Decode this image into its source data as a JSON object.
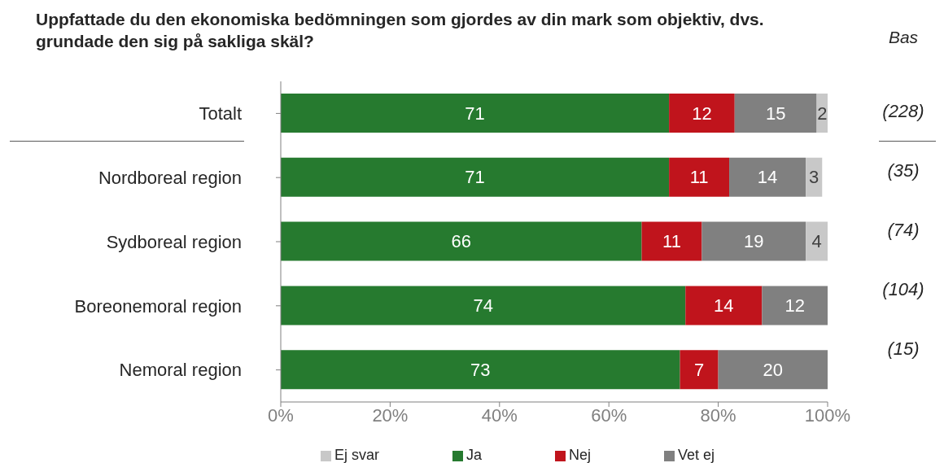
{
  "chart_data": {
    "type": "bar",
    "title": "Uppfattade du den ekonomiska bedömningen som gjordes av din mark som objektiv, dvs. grundade den sig på sakliga skäl?",
    "orientation": "horizontal",
    "stacked": true,
    "data_labels": true,
    "legend": "bottom",
    "grid": false,
    "categories": [
      "Totalt",
      "Nordboreal region",
      "Sydboreal region",
      "Boreonemoral region",
      "Nemoral region"
    ],
    "xlim": [
      0,
      100
    ],
    "xticks": [
      {
        "value": 0,
        "label": "0%"
      },
      {
        "value": 20,
        "label": "20%"
      },
      {
        "value": 40,
        "label": "40%"
      },
      {
        "value": 60,
        "label": "60%"
      },
      {
        "value": 80,
        "label": "80%"
      },
      {
        "value": 100,
        "label": "100%"
      }
    ],
    "series": [
      {
        "name": "Ja",
        "color": "#267a2f",
        "values": [
          71,
          71,
          66,
          74,
          73
        ]
      },
      {
        "name": "Nej",
        "color": "#c0141c",
        "values": [
          12,
          11,
          11,
          14,
          7
        ]
      },
      {
        "name": "Vet ej",
        "color": "#808080",
        "values": [
          15,
          14,
          19,
          12,
          20
        ]
      },
      {
        "name": "Ej svar",
        "color": "#c8c8c8",
        "values": [
          2,
          3,
          4,
          null,
          null
        ]
      }
    ],
    "annotations": [
      "Bas",
      "(228)",
      "(35)",
      "(74)",
      "(104)",
      "(15)"
    ]
  }
}
